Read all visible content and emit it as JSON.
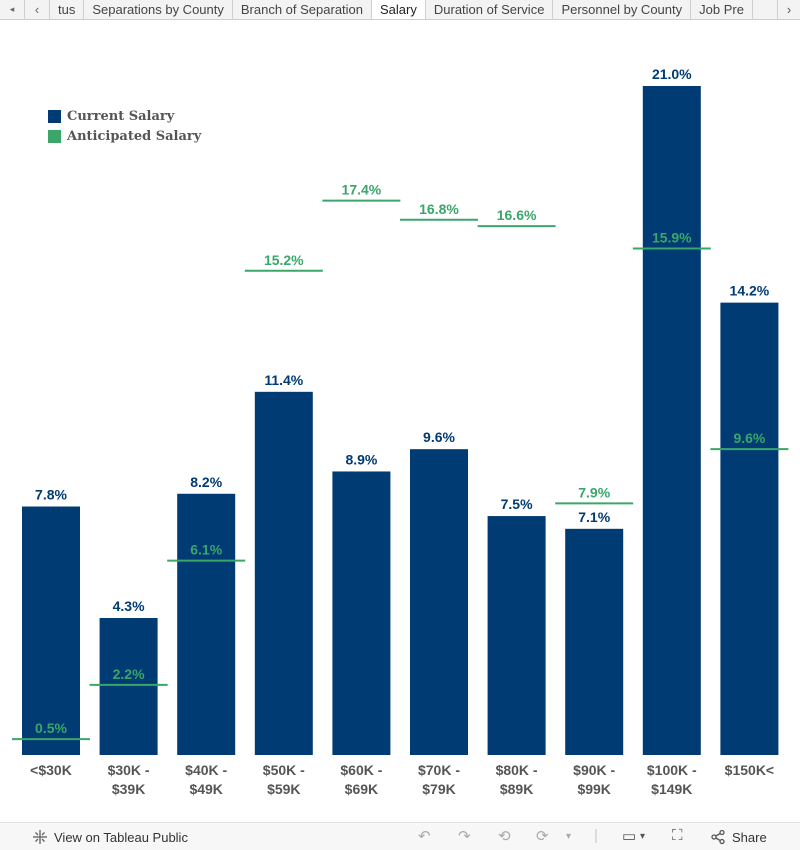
{
  "tabs": {
    "scroll_left": "◂",
    "prev": "‹",
    "items": [
      "tus",
      "Separations by County",
      "Branch of Separation",
      "Salary",
      "Duration of Service",
      "Personnel by County",
      "Job Pre"
    ],
    "active_index": 3,
    "next": "›"
  },
  "legend": {
    "current": "Current  Salary",
    "anticipated": "Anticipated  Salary"
  },
  "colors": {
    "current": "#003b73",
    "anticipated": "#3aa66a",
    "axis_label": "#555555"
  },
  "chart_data": {
    "type": "bar",
    "categories": [
      "<$30K",
      "$30K - $39K",
      "$40K - $49K",
      "$50K - $59K",
      "$60K - $69K",
      "$70K - $79K",
      "$80K - $89K",
      "$90K - $99K",
      "$100K - $149K",
      "$150K<"
    ],
    "category_lines": [
      [
        "<$30K"
      ],
      [
        "$30K -",
        "$39K"
      ],
      [
        "$40K -",
        "$49K"
      ],
      [
        "$50K -",
        "$59K"
      ],
      [
        "$60K -",
        "$69K"
      ],
      [
        "$70K -",
        "$79K"
      ],
      [
        "$80K -",
        "$89K"
      ],
      [
        "$90K -",
        "$99K"
      ],
      [
        "$100K -",
        "$149K"
      ],
      [
        "$150K<"
      ]
    ],
    "series": [
      {
        "name": "Current  Salary",
        "mark": "bar",
        "values": [
          7.8,
          4.3,
          8.2,
          11.4,
          8.9,
          9.6,
          7.5,
          7.1,
          21.0,
          14.2
        ],
        "labels": [
          "7.8%",
          "4.3%",
          "8.2%",
          "11.4%",
          "8.9%",
          "9.6%",
          "7.5%",
          "7.1%",
          "21.0%",
          "14.2%"
        ]
      },
      {
        "name": "Anticipated  Salary",
        "mark": "reference-line",
        "values": [
          0.5,
          2.2,
          6.1,
          15.2,
          17.4,
          16.8,
          16.6,
          7.9,
          15.9,
          9.6
        ],
        "labels": [
          "0.5%",
          "2.2%",
          "6.1%",
          "15.2%",
          "17.4%",
          "16.8%",
          "16.6%",
          "7.9%",
          "15.9%",
          "9.6%"
        ]
      }
    ],
    "ylim": [
      0,
      21.0
    ],
    "grid": false,
    "legend_position": "top-left"
  },
  "footer": {
    "view_link": "View on Tableau Public",
    "share": "Share"
  }
}
